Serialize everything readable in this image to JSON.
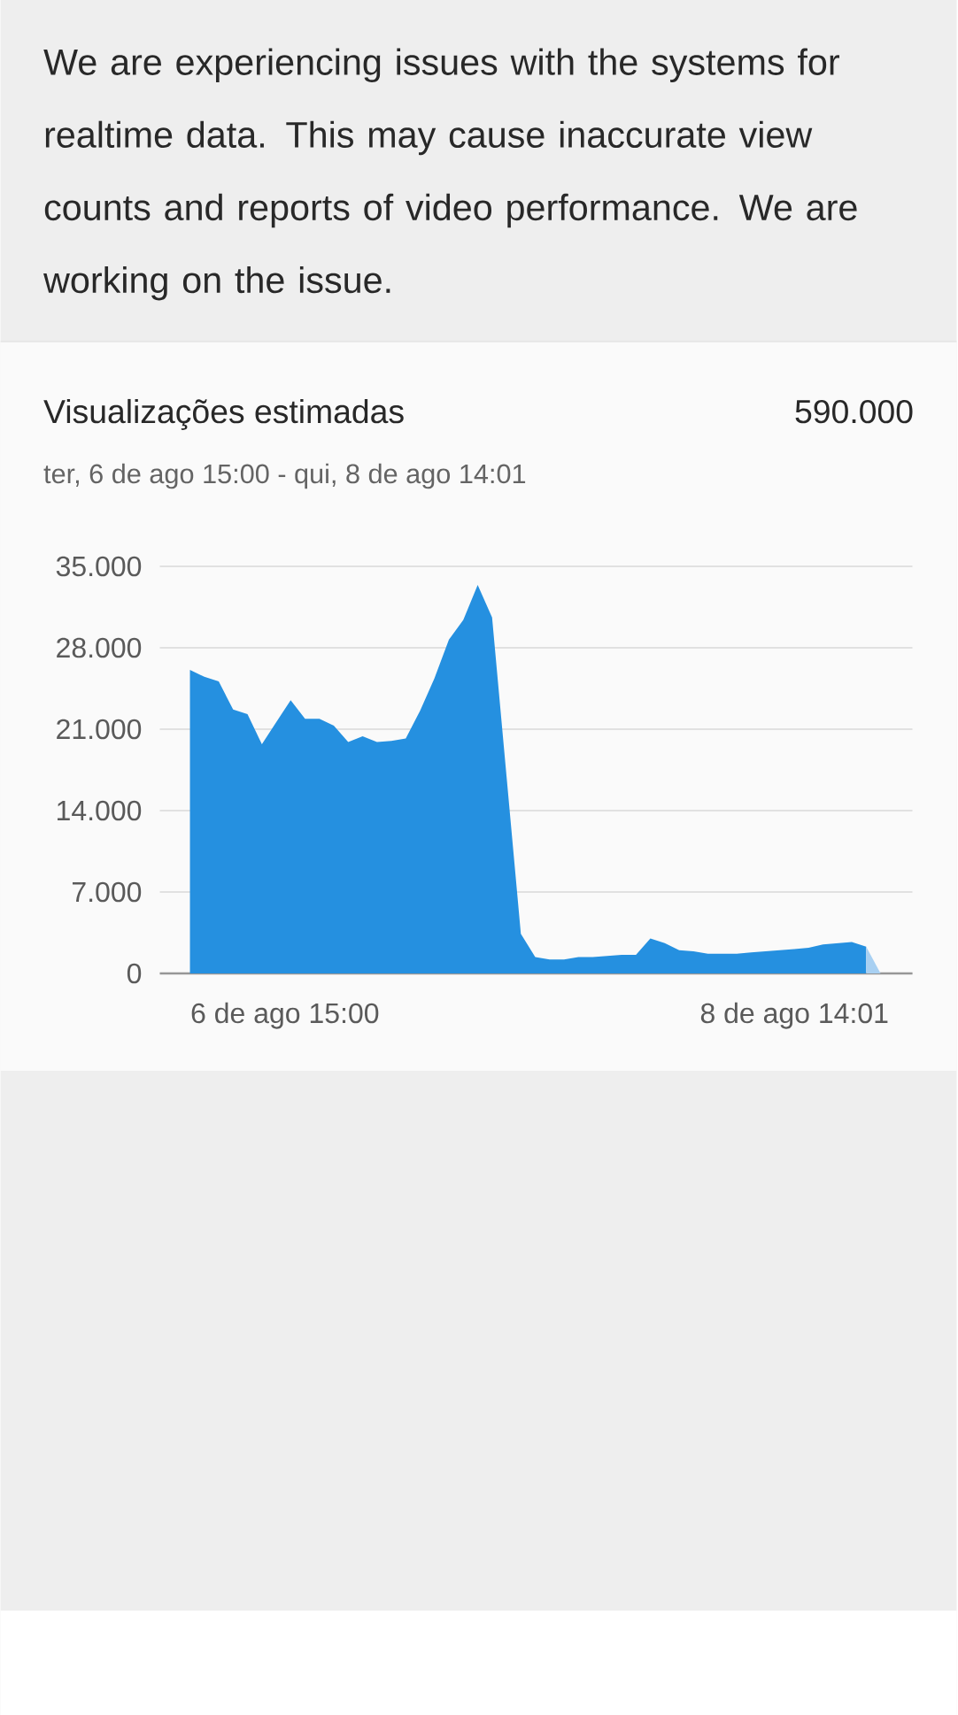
{
  "chart_data": {
    "type": "area",
    "title": "Visualizações estimadas",
    "subtitle": "ter, 6 de ago 15:00 - qui, 8 de ago 14:01",
    "annotations": [
      "We are experiencing issues with the systems for realtime data. This may cause inaccurate view counts and reports of video performance. We are working on the issue.",
      "590.000",
      "6 de ago 15:00",
      "8 de ago 14:01"
    ],
    "categories": [
      null,
      null,
      null,
      null,
      null,
      null,
      null,
      null,
      null,
      null,
      null,
      null,
      null,
      null,
      null,
      null,
      null,
      null,
      null,
      null,
      null,
      null,
      null,
      null,
      null,
      null,
      null,
      null,
      null,
      null,
      null,
      null,
      null,
      null,
      null,
      null,
      null,
      null,
      null,
      null,
      null,
      null,
      null,
      null,
      null,
      null,
      null,
      null,
      null
    ],
    "series": [
      {
        "color": "#2590e0",
        "values": [
          26100,
          25500,
          25100,
          22700,
          22300,
          19700,
          21600,
          23500,
          21900,
          21900,
          21300,
          19900,
          20400,
          19900,
          20000,
          20200,
          22600,
          25400,
          28700,
          30400,
          33400,
          30600,
          17000,
          3400,
          1400,
          1200,
          1200,
          1400,
          1400,
          1500,
          1600,
          1600,
          3000,
          2600,
          2000,
          1900,
          1700,
          1700,
          1700,
          1800,
          1900,
          2000,
          2100,
          2200,
          2500,
          2600,
          2700,
          2300,
          null
        ]
      },
      {
        "color": "#a8d0f2",
        "values": [
          null,
          null,
          null,
          null,
          null,
          null,
          null,
          null,
          null,
          null,
          null,
          null,
          null,
          null,
          null,
          null,
          null,
          null,
          null,
          null,
          null,
          null,
          null,
          null,
          null,
          null,
          null,
          null,
          null,
          null,
          null,
          null,
          null,
          null,
          null,
          null,
          null,
          null,
          null,
          null,
          null,
          null,
          null,
          null,
          null,
          null,
          null,
          2300,
          0
        ]
      }
    ],
    "ylim": [
      0,
      35000
    ],
    "yticks": [
      {
        "value": 0,
        "label": "0"
      },
      {
        "value": 7000,
        "label": "7.000"
      },
      {
        "value": 14000,
        "label": "14.000"
      },
      {
        "value": 21000,
        "label": "21.000"
      },
      {
        "value": 28000,
        "label": "28.000"
      },
      {
        "value": 35000,
        "label": "35.000"
      }
    ],
    "grid": "y"
  }
}
